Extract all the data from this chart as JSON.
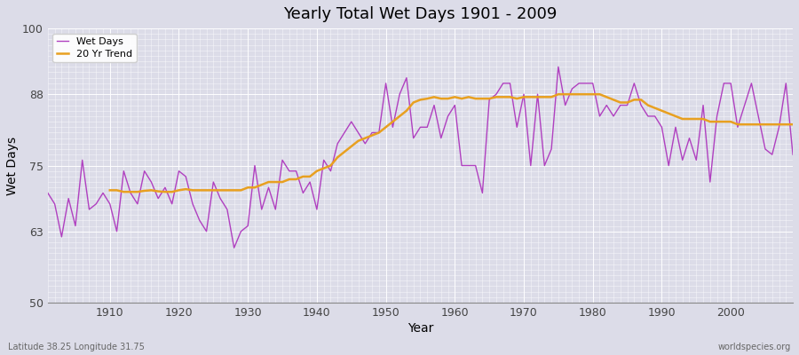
{
  "title": "Yearly Total Wet Days 1901 - 2009",
  "xlabel": "Year",
  "ylabel": "Wet Days",
  "footnote_left": "Latitude 38.25 Longitude 31.75",
  "footnote_right": "worldspecies.org",
  "ylim": [
    50,
    100
  ],
  "yticks": [
    50,
    63,
    75,
    88,
    100
  ],
  "xlim": [
    1901,
    2009
  ],
  "bg_color": "#dcdce8",
  "plot_bg_color": "#dcdce8",
  "wet_days_color": "#b040c0",
  "trend_color": "#e8a020",
  "legend_labels": [
    "Wet Days",
    "20 Yr Trend"
  ],
  "years": [
    1901,
    1902,
    1903,
    1904,
    1905,
    1906,
    1907,
    1908,
    1909,
    1910,
    1911,
    1912,
    1913,
    1914,
    1915,
    1916,
    1917,
    1918,
    1919,
    1920,
    1921,
    1922,
    1923,
    1924,
    1925,
    1926,
    1927,
    1928,
    1929,
    1930,
    1931,
    1932,
    1933,
    1934,
    1935,
    1936,
    1937,
    1938,
    1939,
    1940,
    1941,
    1942,
    1943,
    1944,
    1945,
    1946,
    1947,
    1948,
    1949,
    1950,
    1951,
    1952,
    1953,
    1954,
    1955,
    1956,
    1957,
    1958,
    1959,
    1960,
    1961,
    1962,
    1963,
    1964,
    1965,
    1966,
    1967,
    1968,
    1969,
    1970,
    1971,
    1972,
    1973,
    1974,
    1975,
    1976,
    1977,
    1978,
    1979,
    1980,
    1981,
    1982,
    1983,
    1984,
    1985,
    1986,
    1987,
    1988,
    1989,
    1990,
    1991,
    1992,
    1993,
    1994,
    1995,
    1996,
    1997,
    1998,
    1999,
    2000,
    2001,
    2002,
    2003,
    2004,
    2005,
    2006,
    2007,
    2008,
    2009
  ],
  "wet_days": [
    70,
    68,
    62,
    69,
    64,
    76,
    67,
    68,
    70,
    68,
    63,
    74,
    70,
    68,
    74,
    72,
    69,
    71,
    68,
    74,
    73,
    68,
    65,
    63,
    72,
    69,
    67,
    60,
    63,
    64,
    75,
    67,
    71,
    67,
    76,
    74,
    74,
    70,
    72,
    67,
    76,
    74,
    79,
    81,
    83,
    81,
    79,
    81,
    81,
    90,
    82,
    88,
    91,
    80,
    82,
    82,
    86,
    80,
    84,
    86,
    75,
    75,
    75,
    70,
    87,
    88,
    90,
    90,
    82,
    88,
    75,
    88,
    75,
    78,
    93,
    86,
    89,
    90,
    90,
    90,
    84,
    86,
    84,
    86,
    86,
    90,
    86,
    84,
    84,
    82,
    75,
    82,
    76,
    80,
    76,
    86,
    72,
    84,
    90,
    90,
    82,
    86,
    90,
    84,
    78,
    77,
    82,
    90,
    77
  ],
  "trend": [
    null,
    null,
    null,
    null,
    null,
    null,
    null,
    null,
    null,
    70.5,
    70.5,
    70.2,
    70.2,
    70.2,
    70.4,
    70.5,
    70.3,
    70.2,
    70.2,
    70.5,
    70.7,
    70.5,
    70.5,
    70.5,
    70.5,
    70.5,
    70.5,
    70.5,
    70.5,
    71,
    71,
    71.5,
    72,
    72,
    72,
    72.5,
    72.5,
    73,
    73,
    74,
    74.5,
    75,
    76.5,
    77.5,
    78.5,
    79.5,
    80,
    80.5,
    81,
    82,
    83,
    84,
    85,
    86.5,
    87,
    87.2,
    87.5,
    87.2,
    87.2,
    87.5,
    87.2,
    87.5,
    87.2,
    87.2,
    87.2,
    87.5,
    87.5,
    87.5,
    87.2,
    87.5,
    87.5,
    87.5,
    87.5,
    87.5,
    88,
    88,
    88,
    88,
    88,
    88,
    88,
    87.5,
    87,
    86.5,
    86.5,
    87,
    87,
    86,
    85.5,
    85,
    84.5,
    84,
    83.5,
    83.5,
    83.5,
    83.5,
    83,
    83,
    83,
    83,
    82.5,
    82.5,
    82.5,
    82.5,
    82.5,
    82.5,
    82.5,
    82.5,
    82.5
  ]
}
